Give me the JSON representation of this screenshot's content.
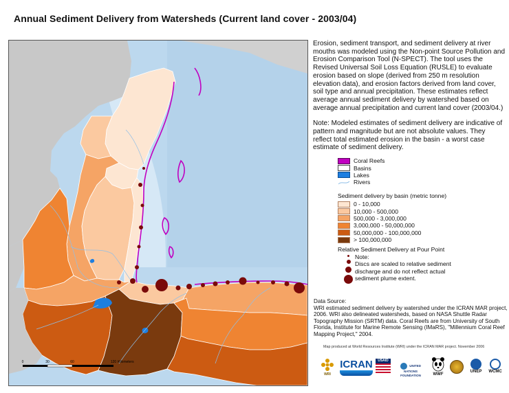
{
  "title": "Annual Sediment Delivery from Watersheds (Current land cover - 2003/04)",
  "description": "Erosion, sediment transport, and sediment delivery at river mouths was modeled using the Non-point Source Pollution and Erosion Comparison Tool (N-SPECT). The tool uses the Revised Universal Soil Loss Equation (RUSLE) to evaluate erosion based on slope (derived from 250 m resolution elevation data), and erosion factors derived from land cover, soil type and annual precipitation. These estimates reflect average annual sediment delivery by watershed based on average annual precipitation and current land cover (2003/04.)",
  "note": "Note: Modeled estimates of sediment delivery are indicative of pattern and magnitude but are not absolute values. They reflect total estimated erosion in the basin - a worst case estimate of sediment delivery.",
  "layer_legend": [
    {
      "label": "Coral Reefs",
      "color": "#c000c0",
      "kind": "fill"
    },
    {
      "label": "Basins",
      "color": "#ffffff",
      "kind": "outline"
    },
    {
      "label": "Lakes",
      "color": "#1e7fe0",
      "kind": "fill"
    },
    {
      "label": "Rivers",
      "color": "#8fbfe8",
      "kind": "line"
    }
  ],
  "sediment_legend": {
    "title": "Sediment delivery by basin (metric tonne)",
    "classes": [
      {
        "label": "0 - 10,000",
        "color": "#fde6d2"
      },
      {
        "label": "10,000 - 500,000",
        "color": "#fbc9a0"
      },
      {
        "label": "500,000 - 3,000,000",
        "color": "#f5a465"
      },
      {
        "label": "3,000,000 - 50,000,000",
        "color": "#ef8432"
      },
      {
        "label": "50,000,000 - 100,000,000",
        "color": "#cc5b12"
      },
      {
        "label": "> 100,000,000",
        "color": "#7a3a0e"
      }
    ]
  },
  "pour_point_legend": {
    "title": "Relative Sediment Delivery at Pour Point",
    "lines": [
      "Note:",
      "Discs are scaled to relative sediment",
      "discharge and do not reflect actual",
      "sediment plume extent."
    ],
    "color": "#7a0a0a"
  },
  "data_source": {
    "heading": "Data Source:",
    "text": "WRI estimated sediment delivery by watershed under the ICRAN MAR project, 2006. WRI also delineated watersheds, based on NASA Shuttle Radar Topography Mission (SRTM) data. Coral Reefs are from University of South Florida, Institute for Marine Remote Sensing (IMaRS), \"Millennium Coral Reef Mapping Project,\" 2004."
  },
  "credit": "Map produced at World Resources Institute (WRI) under the ICRAN MAR project. November 2006",
  "scale_bar": {
    "ticks": [
      "0",
      "30",
      "60",
      "120"
    ],
    "unit": "Kilometers"
  },
  "logos": [
    "WRI",
    "ICRAN",
    "USAID",
    "UNITED NATIONS FOUNDATION",
    "WWF",
    "UNEP",
    "WCMC"
  ],
  "colors": {
    "ocean": "#bcd8ee",
    "land_outside": "#c8c8c8",
    "reef": "#c000c0",
    "pour_point": "#7a0a0a"
  }
}
